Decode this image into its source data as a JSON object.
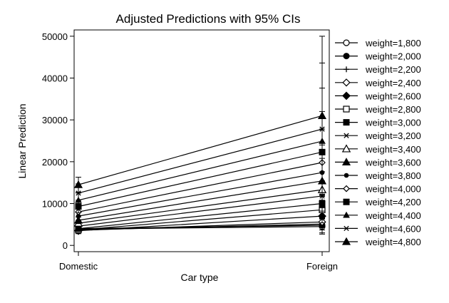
{
  "chart_data": {
    "type": "line",
    "title": "Adjusted Predictions with 95% CIs",
    "xlabel": "Car type",
    "ylabel": "Linear Prediction",
    "categories": [
      "Domestic",
      "Foreign"
    ],
    "ylim": [
      -1500,
      51500
    ],
    "yticks": [
      0,
      10000,
      20000,
      30000,
      40000,
      50000
    ],
    "ytick_labels": [
      "0",
      "10000",
      "20000",
      "30000",
      "40000",
      "50000"
    ],
    "grid": false,
    "legend_position": "right",
    "line_color": "#000000",
    "series": [
      {
        "name": "weight=1,800",
        "marker": "circle-open",
        "values": [
          3900,
          4500
        ],
        "ci_low": [
          2800,
          2700
        ],
        "ci_high": [
          5000,
          6300
        ]
      },
      {
        "name": "weight=2,000",
        "marker": "circle-filled",
        "values": [
          4000,
          4800
        ],
        "ci_low": [
          3000,
          3000
        ],
        "ci_high": [
          5000,
          6600
        ]
      },
      {
        "name": "weight=2,200",
        "marker": "plus",
        "values": [
          3700,
          5100
        ],
        "ci_low": [
          3100,
          3700
        ],
        "ci_high": [
          4300,
          6500
        ]
      },
      {
        "name": "weight=2,400",
        "marker": "diamond-open",
        "values": [
          3600,
          5600
        ],
        "ci_low": [
          3100,
          4600
        ],
        "ci_high": [
          4100,
          6600
        ]
      },
      {
        "name": "weight=2,600",
        "marker": "diamond-filled",
        "values": [
          3500,
          7000
        ],
        "ci_low": [
          3100,
          5400
        ],
        "ci_high": [
          3900,
          8600
        ]
      },
      {
        "name": "weight=2,800",
        "marker": "square-open",
        "values": [
          3700,
          8500
        ],
        "ci_low": [
          3300,
          6400
        ],
        "ci_high": [
          4100,
          10600
        ]
      },
      {
        "name": "weight=3,000",
        "marker": "square-filled",
        "values": [
          4000,
          10000
        ],
        "ci_low": [
          3500,
          7300
        ],
        "ci_high": [
          4500,
          12700
        ]
      },
      {
        "name": "weight=3,200",
        "marker": "x",
        "values": [
          4600,
          11800
        ],
        "ci_low": [
          4000,
          8200
        ],
        "ci_high": [
          5200,
          15400
        ]
      },
      {
        "name": "weight=3,400",
        "marker": "triangle-open",
        "values": [
          5300,
          13300
        ],
        "ci_low": [
          4600,
          9000
        ],
        "ci_high": [
          6000,
          17600
        ]
      },
      {
        "name": "weight=3,600",
        "marker": "triangle-filled",
        "values": [
          6000,
          15400
        ],
        "ci_low": [
          5200,
          10000
        ],
        "ci_high": [
          6800,
          20800
        ]
      },
      {
        "name": "weight=3,800",
        "marker": "dot",
        "values": [
          7000,
          17400
        ],
        "ci_low": [
          6000,
          10800
        ],
        "ci_high": [
          8000,
          24000
        ]
      },
      {
        "name": "weight=4,000",
        "marker": "diamond-open-small",
        "values": [
          8000,
          19800
        ],
        "ci_low": [
          6800,
          11800
        ],
        "ci_high": [
          9200,
          27800
        ]
      },
      {
        "name": "weight=4,200",
        "marker": "square-filled",
        "values": [
          9300,
          22300
        ],
        "ci_low": [
          7800,
          12600
        ],
        "ci_high": [
          10800,
          32000
        ]
      },
      {
        "name": "weight=4,400",
        "marker": "triangle-filled-small",
        "values": [
          10800,
          24900
        ],
        "ci_low": [
          8900,
          12200
        ],
        "ci_high": [
          12700,
          37600
        ]
      },
      {
        "name": "weight=4,600",
        "marker": "x",
        "values": [
          12500,
          27800
        ],
        "ci_low": [
          10000,
          12000
        ],
        "ci_high": [
          14700,
          43600
        ]
      },
      {
        "name": "weight=4,800",
        "marker": "triangle-filled",
        "values": [
          14500,
          31000
        ],
        "ci_low": [
          12500,
          11700
        ],
        "ci_high": [
          16300,
          50000
        ]
      }
    ]
  }
}
